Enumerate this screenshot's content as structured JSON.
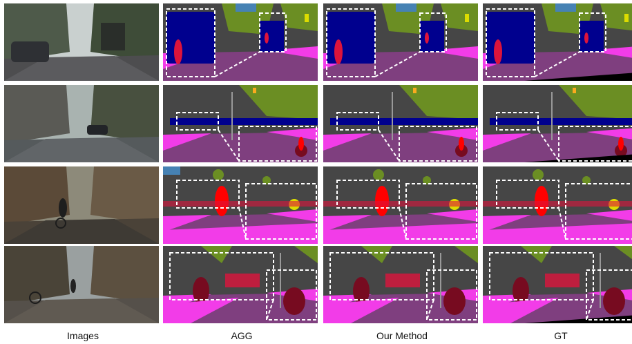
{
  "figure": {
    "columns": [
      {
        "label": "Images"
      },
      {
        "label": "AGG"
      },
      {
        "label": "Our Method"
      },
      {
        "label": "GT"
      }
    ],
    "rows": 4,
    "palette": {
      "road": "#7f3f7f",
      "sidewalk": "#f23ce8",
      "building": "#464646",
      "vegetation": "#6b8e23",
      "sky": "#4682b4",
      "car": "#00008e",
      "person": "#dc143c",
      "rider": "#ff0000",
      "bicycle": "#770b20",
      "pole": "#999999",
      "traffic-sign": "#dcdc00",
      "wall": "#6a6a9c",
      "ignore": "#000000"
    }
  }
}
